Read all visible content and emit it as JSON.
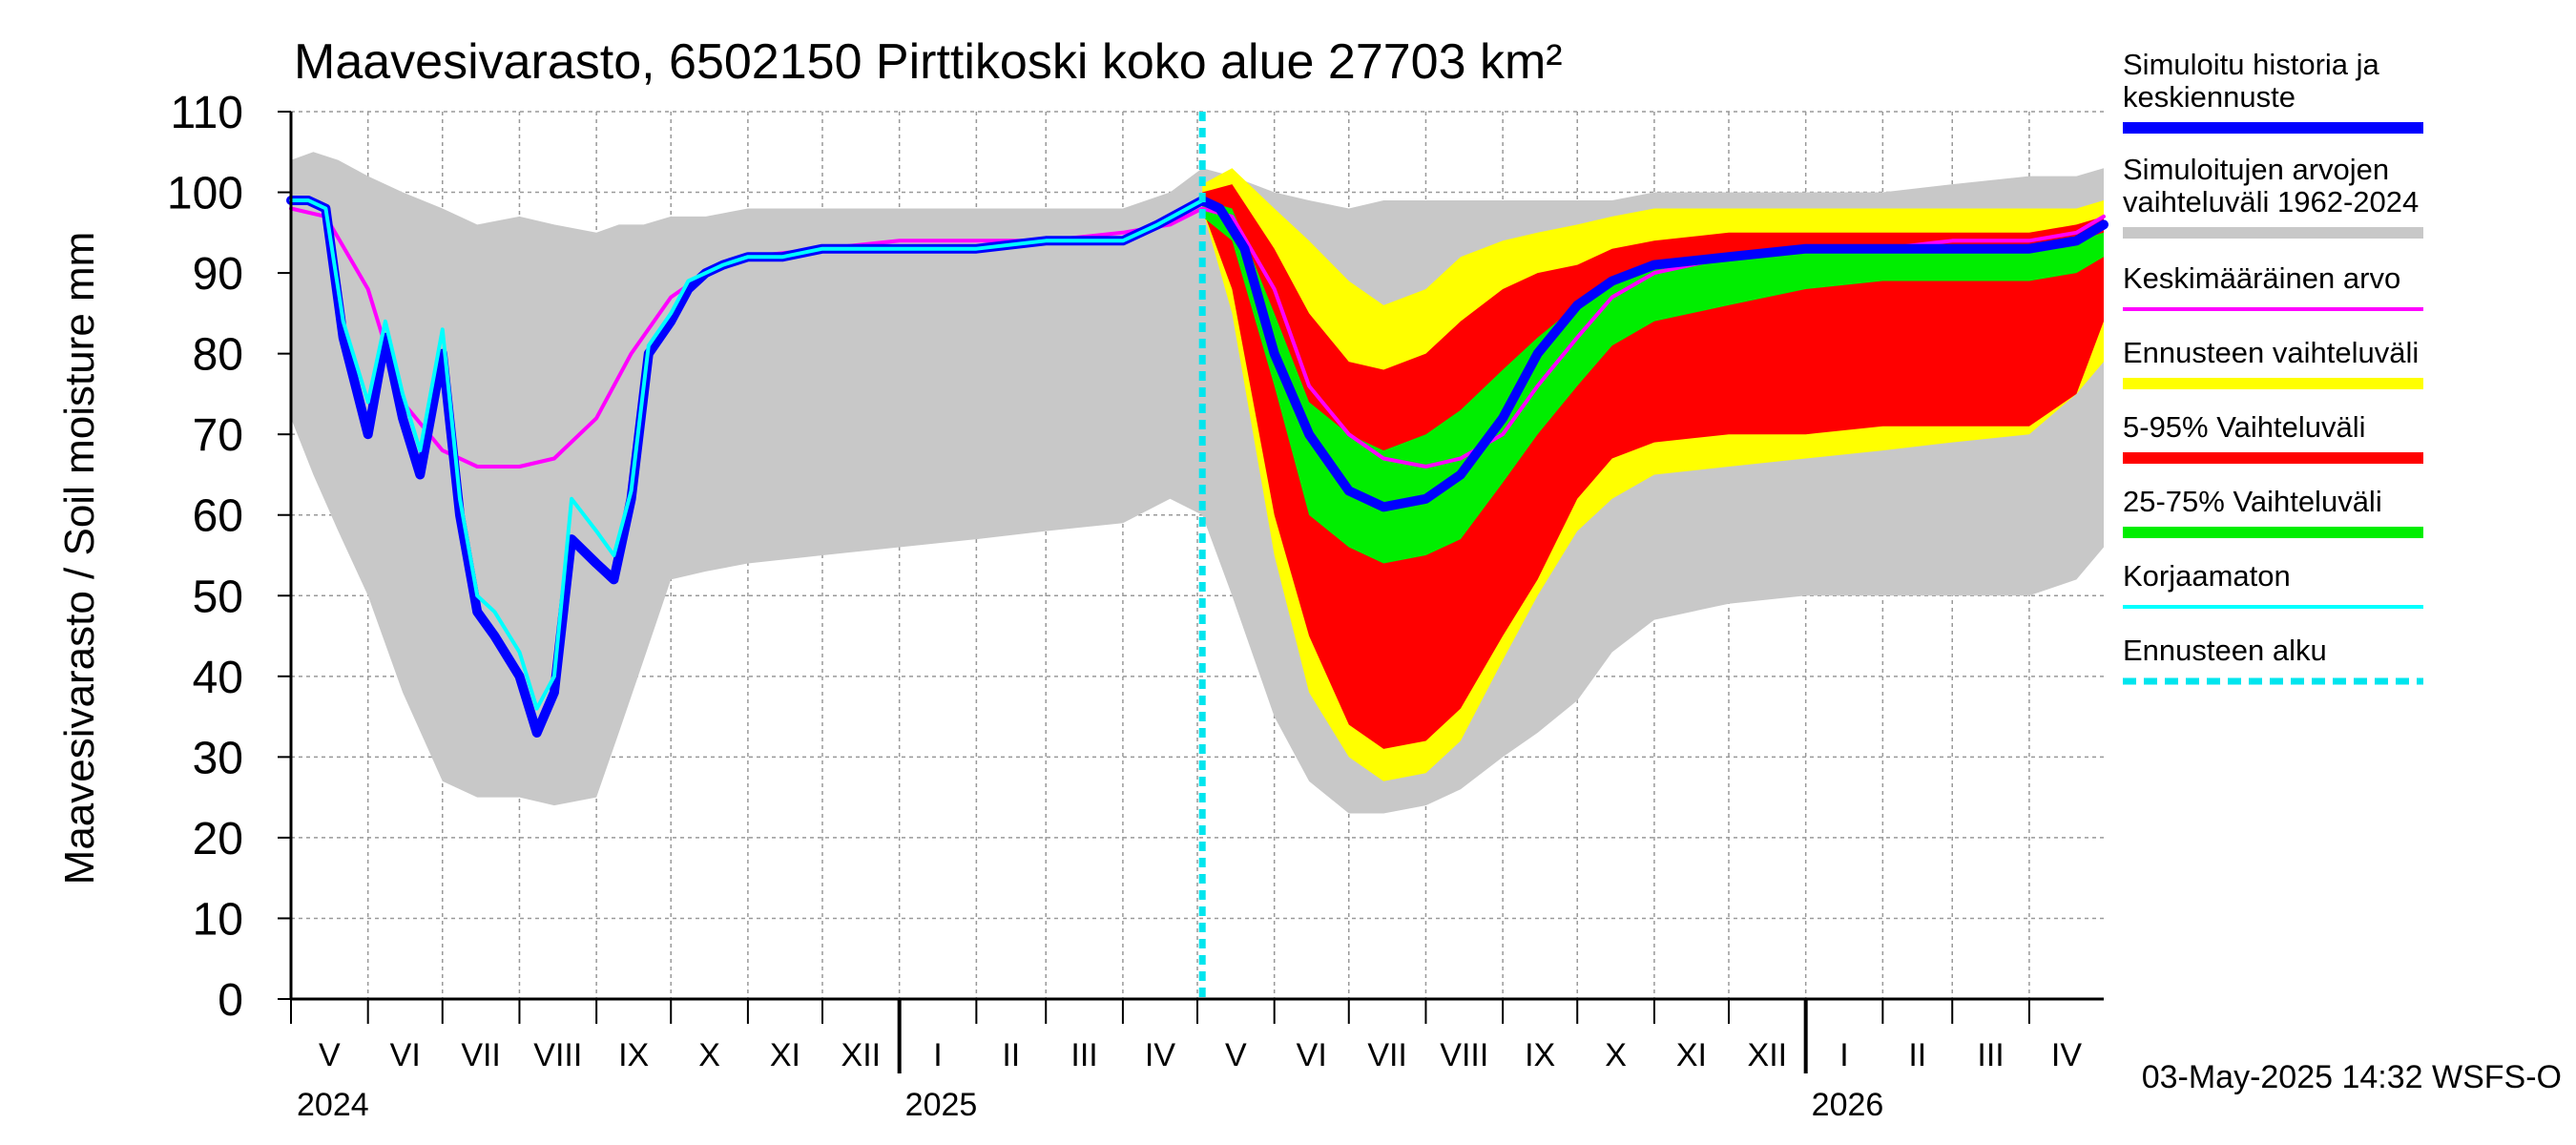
{
  "chart_data": {
    "type": "area",
    "title": "Maavesivarasto, 6502150 Pirttikoski koko alue 27703 km²",
    "ylabel": "Maavesivarasto / Soil moisture   mm",
    "ylim": [
      0,
      110
    ],
    "yticks": [
      0,
      10,
      20,
      30,
      40,
      50,
      60,
      70,
      80,
      90,
      100,
      110
    ],
    "x_start": "2024-05-01",
    "x_end": "2026-05-01",
    "forecast_start": "2025-05-03",
    "months": [
      {
        "label": "V",
        "start": "2024-05-01"
      },
      {
        "label": "VI",
        "start": "2024-06-01"
      },
      {
        "label": "VII",
        "start": "2024-07-01"
      },
      {
        "label": "VIII",
        "start": "2024-08-01"
      },
      {
        "label": "IX",
        "start": "2024-09-01"
      },
      {
        "label": "X",
        "start": "2024-10-01"
      },
      {
        "label": "XI",
        "start": "2024-11-01"
      },
      {
        "label": "XII",
        "start": "2024-12-01"
      },
      {
        "label": "I",
        "start": "2025-01-01"
      },
      {
        "label": "II",
        "start": "2025-02-01"
      },
      {
        "label": "III",
        "start": "2025-03-01"
      },
      {
        "label": "IV",
        "start": "2025-04-01"
      },
      {
        "label": "V",
        "start": "2025-05-01"
      },
      {
        "label": "VI",
        "start": "2025-06-01"
      },
      {
        "label": "VII",
        "start": "2025-07-01"
      },
      {
        "label": "VIII",
        "start": "2025-08-01"
      },
      {
        "label": "IX",
        "start": "2025-09-01"
      },
      {
        "label": "X",
        "start": "2025-10-01"
      },
      {
        "label": "XI",
        "start": "2025-11-01"
      },
      {
        "label": "XII",
        "start": "2025-12-01"
      },
      {
        "label": "I",
        "start": "2026-01-01"
      },
      {
        "label": "II",
        "start": "2026-02-01"
      },
      {
        "label": "III",
        "start": "2026-03-01"
      },
      {
        "label": "IV",
        "start": "2026-04-01"
      }
    ],
    "years": [
      {
        "label": "2024",
        "date": "2024-05-01"
      },
      {
        "label": "2025",
        "date": "2025-01-01"
      },
      {
        "label": "2026",
        "date": "2026-01-01"
      }
    ],
    "legend": [
      {
        "key": "simulated",
        "label": "Simuloitu historia ja keskiennuste",
        "color": "#0000ff",
        "style": "thick"
      },
      {
        "key": "range",
        "label": "Simuloitujen arvojen vaihteluväli 1962-2024",
        "color": "#c8c8c8",
        "style": "thick"
      },
      {
        "key": "mean",
        "label": "Keskimääräinen arvo",
        "color": "#ff00ff",
        "style": "thin"
      },
      {
        "key": "forecast_range",
        "label": "Ennusteen vaihteluväli",
        "color": "#ffff00",
        "style": "thick"
      },
      {
        "key": "p5_95",
        "label": "5-95% Vaihteluväli",
        "color": "#ff0000",
        "style": "thick"
      },
      {
        "key": "p25_75",
        "label": "25-75% Vaihteluväli",
        "color": "#00ee00",
        "style": "thick"
      },
      {
        "key": "uncorrected",
        "label": "Korjaamaton",
        "color": "#00ffff",
        "style": "thin"
      },
      {
        "key": "forecast_start",
        "label": "Ennusteen alku",
        "color": "#00e5ee",
        "style": "dashed"
      }
    ],
    "series": {
      "range": {
        "name": "Simuloitujen arvojen vaihteluväli 1962-2024",
        "x": [
          "2024-05-01",
          "2024-05-10",
          "2024-05-20",
          "2024-06-01",
          "2024-06-15",
          "2024-07-01",
          "2024-07-15",
          "2024-08-01",
          "2024-08-15",
          "2024-09-01",
          "2024-09-10",
          "2024-09-20",
          "2024-10-01",
          "2024-10-15",
          "2024-11-01",
          "2024-12-01",
          "2025-01-01",
          "2025-02-01",
          "2025-03-01",
          "2025-04-01",
          "2025-04-20",
          "2025-05-03",
          "2025-05-15",
          "2025-06-01",
          "2025-06-15",
          "2025-07-01",
          "2025-07-15",
          "2025-08-01",
          "2025-08-15",
          "2025-09-01",
          "2025-09-15",
          "2025-10-01",
          "2025-10-15",
          "2025-11-01",
          "2025-12-01",
          "2026-01-01",
          "2026-02-01",
          "2026-03-01",
          "2026-04-01",
          "2026-04-20",
          "2026-05-01"
        ],
        "high": [
          104,
          105,
          104,
          102,
          100,
          98,
          96,
          97,
          96,
          95,
          96,
          96,
          97,
          97,
          98,
          98,
          98,
          98,
          98,
          98,
          100,
          103,
          102,
          100,
          99,
          98,
          99,
          99,
          99,
          99,
          99,
          99,
          99,
          100,
          100,
          100,
          100,
          101,
          102,
          102,
          103
        ],
        "low": [
          72,
          65,
          58,
          50,
          38,
          27,
          25,
          25,
          24,
          25,
          33,
          42,
          52,
          53,
          54,
          55,
          56,
          57,
          58,
          59,
          62,
          60,
          50,
          35,
          27,
          23,
          23,
          24,
          26,
          30,
          33,
          37,
          43,
          47,
          49,
          50,
          50,
          50,
          50,
          52,
          56
        ]
      },
      "forecast_range": {
        "name": "Ennusteen vaihteluväli",
        "x": [
          "2025-05-03",
          "2025-05-15",
          "2025-06-01",
          "2025-06-15",
          "2025-07-01",
          "2025-07-15",
          "2025-08-01",
          "2025-08-15",
          "2025-09-01",
          "2025-09-15",
          "2025-10-01",
          "2025-10-15",
          "2025-11-01",
          "2025-12-01",
          "2026-01-01",
          "2026-02-01",
          "2026-03-01",
          "2026-04-01",
          "2026-04-20",
          "2026-05-01"
        ],
        "high": [
          101,
          103,
          98,
          94,
          89,
          86,
          88,
          92,
          94,
          95,
          96,
          97,
          98,
          98,
          98,
          98,
          98,
          98,
          98,
          99
        ],
        "low": [
          98,
          85,
          55,
          38,
          30,
          27,
          28,
          32,
          42,
          50,
          58,
          62,
          65,
          66,
          67,
          68,
          69,
          70,
          75,
          79
        ]
      },
      "p5_95": {
        "name": "5-95% Vaihteluväli",
        "x": [
          "2025-05-03",
          "2025-05-15",
          "2025-06-01",
          "2025-06-15",
          "2025-07-01",
          "2025-07-15",
          "2025-08-01",
          "2025-08-15",
          "2025-09-01",
          "2025-09-15",
          "2025-10-01",
          "2025-10-15",
          "2025-11-01",
          "2025-12-01",
          "2026-01-01",
          "2026-02-01",
          "2026-03-01",
          "2026-04-01",
          "2026-04-20",
          "2026-05-01"
        ],
        "high": [
          100,
          101,
          93,
          85,
          79,
          78,
          80,
          84,
          88,
          90,
          91,
          93,
          94,
          95,
          95,
          95,
          95,
          95,
          96,
          97
        ],
        "low": [
          98,
          88,
          60,
          45,
          34,
          31,
          32,
          36,
          45,
          52,
          62,
          67,
          69,
          70,
          70,
          71,
          71,
          71,
          75,
          84
        ]
      },
      "p25_75": {
        "name": "25-75% Vaihteluväli",
        "x": [
          "2025-05-03",
          "2025-05-15",
          "2025-06-01",
          "2025-06-15",
          "2025-07-01",
          "2025-07-15",
          "2025-08-01",
          "2025-08-15",
          "2025-09-01",
          "2025-09-15",
          "2025-10-01",
          "2025-10-15",
          "2025-11-01",
          "2025-12-01",
          "2026-01-01",
          "2026-02-01",
          "2026-03-01",
          "2026-04-01",
          "2026-04-20",
          "2026-05-01"
        ],
        "high": [
          99,
          98,
          85,
          74,
          70,
          68,
          70,
          73,
          78,
          82,
          86,
          89,
          91,
          92,
          93,
          93,
          93,
          93,
          94,
          95
        ],
        "low": [
          97,
          94,
          76,
          60,
          56,
          54,
          55,
          57,
          64,
          70,
          76,
          81,
          84,
          86,
          88,
          89,
          89,
          89,
          90,
          92
        ]
      },
      "simulated": {
        "name": "Simuloitu historia ja keskiennuste",
        "x": [
          "2024-05-01",
          "2024-05-08",
          "2024-05-15",
          "2024-05-22",
          "2024-06-01",
          "2024-06-08",
          "2024-06-15",
          "2024-06-22",
          "2024-07-01",
          "2024-07-08",
          "2024-07-15",
          "2024-07-22",
          "2024-08-01",
          "2024-08-08",
          "2024-08-15",
          "2024-08-22",
          "2024-09-01",
          "2024-09-08",
          "2024-09-15",
          "2024-09-22",
          "2024-10-01",
          "2024-10-08",
          "2024-10-15",
          "2024-10-22",
          "2024-11-01",
          "2024-11-15",
          "2024-12-01",
          "2025-01-01",
          "2025-02-01",
          "2025-03-01",
          "2025-04-01",
          "2025-04-15",
          "2025-05-03",
          "2025-05-10",
          "2025-05-20",
          "2025-06-01",
          "2025-06-15",
          "2025-07-01",
          "2025-07-15",
          "2025-08-01",
          "2025-08-15",
          "2025-09-01",
          "2025-09-15",
          "2025-10-01",
          "2025-10-15",
          "2025-11-01",
          "2025-12-01",
          "2026-01-01",
          "2026-02-01",
          "2026-03-01",
          "2026-04-01",
          "2026-04-20",
          "2026-05-01"
        ],
        "values": [
          99,
          99,
          98,
          82,
          70,
          82,
          72,
          65,
          80,
          60,
          48,
          45,
          40,
          33,
          38,
          57,
          54,
          52,
          62,
          80,
          84,
          88,
          90,
          91,
          92,
          92,
          93,
          93,
          93,
          94,
          94,
          96,
          99,
          98,
          93,
          80,
          70,
          63,
          61,
          62,
          65,
          72,
          80,
          86,
          89,
          91,
          92,
          93,
          93,
          93,
          93,
          94,
          96
        ]
      },
      "uncorrected": {
        "name": "Korjaamaton",
        "x": [
          "2024-05-01",
          "2024-05-08",
          "2024-05-15",
          "2024-05-22",
          "2024-06-01",
          "2024-06-08",
          "2024-06-15",
          "2024-06-22",
          "2024-07-01",
          "2024-07-08",
          "2024-07-15",
          "2024-07-22",
          "2024-08-01",
          "2024-08-08",
          "2024-08-15",
          "2024-08-22",
          "2024-09-01",
          "2024-09-08",
          "2024-09-15",
          "2024-09-22",
          "2024-10-01",
          "2024-10-08",
          "2024-10-15",
          "2024-10-22",
          "2024-11-01",
          "2024-11-15",
          "2024-12-01",
          "2025-01-01",
          "2025-02-01",
          "2025-03-01",
          "2025-04-01",
          "2025-04-15",
          "2025-05-03"
        ],
        "values": [
          99,
          99,
          98,
          84,
          74,
          84,
          75,
          68,
          83,
          62,
          50,
          48,
          43,
          36,
          40,
          62,
          58,
          55,
          63,
          81,
          85,
          89,
          90,
          91,
          92,
          92,
          93,
          93,
          93,
          94,
          94,
          96,
          99
        ]
      },
      "mean": {
        "name": "Keskimääräinen arvo",
        "x": [
          "2024-05-01",
          "2024-05-15",
          "2024-06-01",
          "2024-06-15",
          "2024-07-01",
          "2024-07-15",
          "2024-08-01",
          "2024-08-15",
          "2024-09-01",
          "2024-09-15",
          "2024-10-01",
          "2024-10-15",
          "2024-11-01",
          "2024-12-01",
          "2025-01-01",
          "2025-02-01",
          "2025-03-01",
          "2025-04-01",
          "2025-04-20",
          "2025-05-03",
          "2025-05-15",
          "2025-06-01",
          "2025-06-15",
          "2025-07-01",
          "2025-07-15",
          "2025-08-01",
          "2025-08-15",
          "2025-09-01",
          "2025-09-15",
          "2025-10-01",
          "2025-10-15",
          "2025-11-01",
          "2025-12-01",
          "2026-01-01",
          "2026-02-01",
          "2026-03-01",
          "2026-04-01",
          "2026-04-20",
          "2026-05-01"
        ],
        "values": [
          98,
          97,
          88,
          74,
          68,
          66,
          66,
          67,
          72,
          80,
          87,
          90,
          92,
          93,
          94,
          94,
          94,
          95,
          96,
          98,
          97,
          88,
          76,
          70,
          67,
          66,
          67,
          70,
          76,
          82,
          87,
          90,
          92,
          93,
          93,
          94,
          94,
          95,
          97
        ]
      }
    }
  },
  "footer": {
    "timestamp": "03-May-2025 14:32 WSFS-O"
  }
}
